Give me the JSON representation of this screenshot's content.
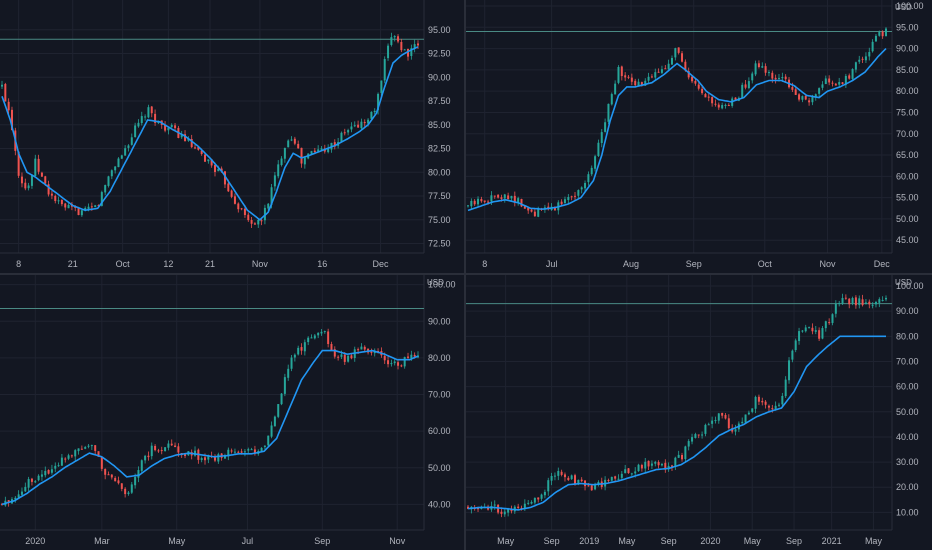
{
  "colors": {
    "background": "#131722",
    "grid": "#1f2330",
    "axis_text": "#b2b5be",
    "up_candle": "#26a69a",
    "down_candle": "#ef5350",
    "moving_average": "#2196f3",
    "price_line": "#4a8a84"
  },
  "chart_data": [
    {
      "type": "candlestick",
      "pane": "top-left",
      "currency": "",
      "price_line": 94.0,
      "ylim": [
        71.5,
        97.5
      ],
      "yticks": [
        "95.00",
        "92.50",
        "90.00",
        "87.50",
        "85.00",
        "82.50",
        "80.00",
        "77.50",
        "75.00",
        "72.50"
      ],
      "ytick_values": [
        95,
        92.5,
        90,
        87.5,
        85,
        82.5,
        80,
        77.5,
        75,
        72.5
      ],
      "xticks": [
        "8",
        "21",
        "Oct",
        "12",
        "21",
        "Nov",
        "16",
        "Dec"
      ],
      "xtick_positions": [
        0.04,
        0.17,
        0.29,
        0.4,
        0.5,
        0.62,
        0.77,
        0.91
      ],
      "series": [
        {
          "x": [
            0,
            0.02,
            0.04,
            0.06,
            0.08,
            0.11,
            0.14,
            0.17,
            0.2,
            0.23,
            0.26,
            0.29,
            0.32,
            0.35,
            0.38,
            0.41,
            0.44,
            0.47,
            0.5,
            0.53,
            0.56,
            0.59,
            0.62,
            0.64,
            0.66,
            0.68,
            0.7,
            0.72,
            0.74,
            0.77,
            0.8,
            0.83,
            0.86,
            0.88,
            0.9,
            0.92,
            0.94,
            0.96,
            0.98,
            1.0
          ],
          "y": [
            89,
            86,
            80,
            78,
            81,
            78,
            76.5,
            76,
            75.8,
            76.5,
            80,
            82,
            84.5,
            86.5,
            85,
            84.5,
            83.5,
            82,
            81,
            79.5,
            77,
            75,
            74.5,
            77,
            80,
            83,
            84,
            81,
            82,
            82.5,
            83,
            84.5,
            85,
            85.5,
            87,
            91.5,
            95,
            93,
            92.5,
            93.5
          ],
          "ma": [
            88,
            85.5,
            82,
            80,
            79.5,
            78.5,
            77.5,
            76.5,
            76,
            76.2,
            78,
            80.5,
            83,
            85.5,
            85.3,
            84.5,
            83.8,
            82.8,
            81.5,
            80,
            78,
            76,
            75,
            75.8,
            78,
            80.5,
            82,
            81.5,
            81.8,
            82.3,
            82.8,
            83.5,
            84.3,
            85,
            86.2,
            89,
            91.5,
            92.3,
            92.8,
            93.2
          ]
        }
      ]
    },
    {
      "type": "candlestick",
      "pane": "top-right",
      "currency": "USD",
      "price_line": 94.0,
      "ylim": [
        42,
        100
      ],
      "yticks": [
        "100.00",
        "95.00",
        "90.00",
        "85.00",
        "80.00",
        "75.00",
        "70.00",
        "65.00",
        "60.00",
        "55.00",
        "50.00",
        "45.00"
      ],
      "ytick_values": [
        100,
        95,
        90,
        85,
        80,
        75,
        70,
        65,
        60,
        55,
        50,
        45
      ],
      "xticks": [
        "8",
        "Jul",
        "Aug",
        "Sep",
        "Oct",
        "Nov",
        "Dec"
      ],
      "xtick_positions": [
        0.04,
        0.2,
        0.39,
        0.54,
        0.71,
        0.86,
        0.99
      ],
      "series": [
        {
          "x": [
            0,
            0.03,
            0.06,
            0.09,
            0.12,
            0.15,
            0.18,
            0.21,
            0.24,
            0.27,
            0.3,
            0.32,
            0.34,
            0.36,
            0.38,
            0.4,
            0.42,
            0.44,
            0.47,
            0.5,
            0.52,
            0.55,
            0.57,
            0.6,
            0.63,
            0.66,
            0.69,
            0.72,
            0.75,
            0.78,
            0.81,
            0.84,
            0.86,
            0.89,
            0.92,
            0.95,
            0.98,
            1.0
          ],
          "y": [
            53,
            54.5,
            55,
            56,
            54,
            51,
            52,
            53,
            55,
            57,
            63,
            70,
            79,
            85,
            83,
            81,
            82,
            83,
            86,
            90,
            84,
            80,
            78,
            76,
            77,
            81,
            86,
            84,
            83,
            80,
            77,
            80,
            83,
            81,
            85,
            88,
            93,
            94
          ],
          "ma": [
            52,
            53,
            54,
            54.5,
            53.8,
            52.5,
            52.3,
            52.7,
            53.5,
            55,
            59,
            65,
            73,
            79,
            81,
            81,
            81.5,
            82,
            84,
            86.5,
            85,
            82.5,
            80,
            78,
            77.5,
            78.5,
            81.5,
            82.5,
            82.5,
            81.3,
            79,
            78.5,
            80,
            81,
            82.5,
            84.5,
            88,
            90
          ]
        }
      ]
    },
    {
      "type": "candlestick",
      "pane": "bottom-left",
      "currency": "USD",
      "price_line": 93.5,
      "ylim": [
        33,
        101
      ],
      "yticks": [
        "100.00",
        "90.00",
        "80.00",
        "70.00",
        "60.00",
        "50.00",
        "40.00"
      ],
      "ytick_values": [
        100,
        90,
        80,
        70,
        60,
        50,
        40
      ],
      "xticks": [
        "2020",
        "Mar",
        "May",
        "Jul",
        "Sep",
        "Nov"
      ],
      "xtick_positions": [
        0.08,
        0.24,
        0.42,
        0.59,
        0.77,
        0.95
      ],
      "series": [
        {
          "x": [
            0,
            0.03,
            0.06,
            0.09,
            0.12,
            0.15,
            0.18,
            0.21,
            0.24,
            0.27,
            0.3,
            0.33,
            0.36,
            0.39,
            0.42,
            0.45,
            0.48,
            0.51,
            0.54,
            0.57,
            0.6,
            0.63,
            0.66,
            0.69,
            0.72,
            0.75,
            0.77,
            0.8,
            0.83,
            0.86,
            0.89,
            0.92,
            0.95,
            0.98,
            1.0
          ],
          "y": [
            40,
            42,
            46,
            48,
            50,
            53,
            55,
            57,
            50,
            46,
            43,
            50,
            55,
            56,
            55,
            54,
            53,
            52,
            54,
            55,
            54,
            56,
            66,
            78,
            83,
            87,
            88,
            80,
            80,
            83,
            82,
            80,
            78,
            80,
            81
          ],
          "ma": [
            40,
            41,
            43,
            45.5,
            47.5,
            50,
            52,
            54,
            53,
            50.5,
            47.5,
            48,
            50.5,
            52.5,
            53.5,
            54,
            53.5,
            53,
            53.3,
            53.8,
            53.8,
            54.5,
            58,
            66,
            74,
            79,
            82,
            82,
            81,
            81.5,
            82,
            81,
            79.5,
            79.5,
            80.5
          ]
        }
      ]
    },
    {
      "type": "candlestick",
      "pane": "bottom-right",
      "currency": "USD",
      "price_line": 93.0,
      "ylim": [
        3,
        102
      ],
      "yticks": [
        "100.00",
        "90.00",
        "80.00",
        "70.00",
        "60.00",
        "50.00",
        "40.00",
        "30.00",
        "20.00",
        "10.00"
      ],
      "ytick_values": [
        100,
        90,
        80,
        70,
        60,
        50,
        40,
        30,
        20,
        10
      ],
      "xticks": [
        "May",
        "Sep",
        "2019",
        "May",
        "Sep",
        "2020",
        "May",
        "Sep",
        "2021",
        "May"
      ],
      "xtick_positions": [
        0.09,
        0.2,
        0.29,
        0.38,
        0.48,
        0.58,
        0.68,
        0.78,
        0.87,
        0.97
      ],
      "series": [
        {
          "x": [
            0,
            0.03,
            0.06,
            0.09,
            0.12,
            0.15,
            0.18,
            0.21,
            0.24,
            0.27,
            0.3,
            0.33,
            0.36,
            0.39,
            0.42,
            0.45,
            0.48,
            0.51,
            0.54,
            0.57,
            0.6,
            0.63,
            0.66,
            0.69,
            0.72,
            0.75,
            0.78,
            0.81,
            0.84,
            0.86,
            0.89
          ],
          "y": [
            12,
            13,
            12,
            10,
            11,
            14,
            18,
            26,
            24,
            21,
            20,
            22,
            25,
            27,
            29,
            30,
            28,
            32,
            40,
            44,
            50,
            42,
            47,
            55,
            52,
            55,
            78,
            85,
            80,
            86,
            94
          ],
          "ma": [
            11.5,
            12,
            12,
            11.5,
            11,
            12,
            14,
            18,
            21,
            21.5,
            21,
            21.5,
            22.5,
            24,
            25.5,
            27,
            27.5,
            29,
            32,
            36,
            40.5,
            43,
            45,
            48,
            50,
            51.5,
            58,
            68,
            73,
            76,
            80
          ]
        }
      ]
    }
  ]
}
